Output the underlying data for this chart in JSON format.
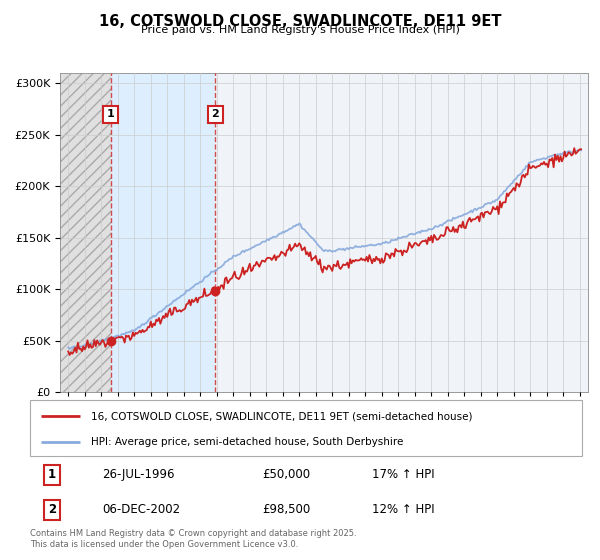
{
  "title": "16, COTSWOLD CLOSE, SWADLINCOTE, DE11 9ET",
  "subtitle": "Price paid vs. HM Land Registry's House Price Index (HPI)",
  "legend_line1": "16, COTSWOLD CLOSE, SWADLINCOTE, DE11 9ET (semi-detached house)",
  "legend_line2": "HPI: Average price, semi-detached house, South Derbyshire",
  "footer": "Contains HM Land Registry data © Crown copyright and database right 2025.\nThis data is licensed under the Open Government Licence v3.0.",
  "sale1_label": "1",
  "sale1_date": "26-JUL-1996",
  "sale1_price": "£50,000",
  "sale1_hpi": "17% ↑ HPI",
  "sale1_year": 1996.57,
  "sale1_value": 50000,
  "sale2_label": "2",
  "sale2_date": "06-DEC-2002",
  "sale2_price": "£98,500",
  "sale2_hpi": "12% ↑ HPI",
  "sale2_year": 2002.92,
  "sale2_value": 98500,
  "price_color": "#cc2222",
  "hpi_color": "#88aadd",
  "hatch_region_color": "#e8e8e8",
  "blue_region_color": "#ddeeff",
  "ylim_min": 0,
  "ylim_max": 310000,
  "xlim_min": 1993.5,
  "xlim_max": 2025.5,
  "background_color": "#f0f4f8",
  "grid_color": "#cccccc"
}
